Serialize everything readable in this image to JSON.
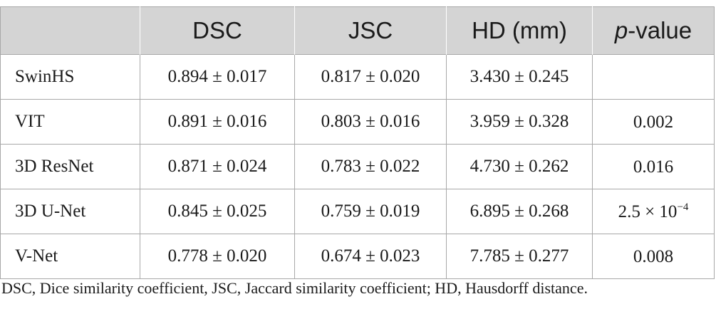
{
  "table": {
    "headers": [
      "",
      "DSC",
      "JSC",
      "HD (mm)"
    ],
    "pvalue_header": {
      "italic": "p",
      "rest": "-value"
    },
    "rows": [
      {
        "model": "SwinHS",
        "dsc": "0.894 ± 0.017",
        "jsc": "0.817 ± 0.020",
        "hd": "3.430 ± 0.245",
        "p": {
          "text": "",
          "exp": ""
        }
      },
      {
        "model": "VIT",
        "dsc": "0.891 ± 0.016",
        "jsc": "0.803 ± 0.016",
        "hd": "3.959 ± 0.328",
        "p": {
          "text": "0.002",
          "exp": ""
        }
      },
      {
        "model": "3D ResNet",
        "dsc": "0.871 ± 0.024",
        "jsc": "0.783 ± 0.022",
        "hd": "4.730 ± 0.262",
        "p": {
          "text": "0.016",
          "exp": ""
        }
      },
      {
        "model": "3D U-Net",
        "dsc": "0.845 ± 0.025",
        "jsc": "0.759 ± 0.019",
        "hd": "6.895 ± 0.268",
        "p": {
          "text": "2.5 × 10",
          "exp": "−4"
        }
      },
      {
        "model": "V-Net",
        "dsc": "0.778 ± 0.020",
        "jsc": "0.674 ± 0.023",
        "hd": "7.785 ± 0.277",
        "p": {
          "text": "0.008",
          "exp": ""
        }
      }
    ]
  },
  "footnote": "DSC, Dice similarity coefficient, JSC, Jaccard similarity coefficient; HD, Hausdorff distance."
}
